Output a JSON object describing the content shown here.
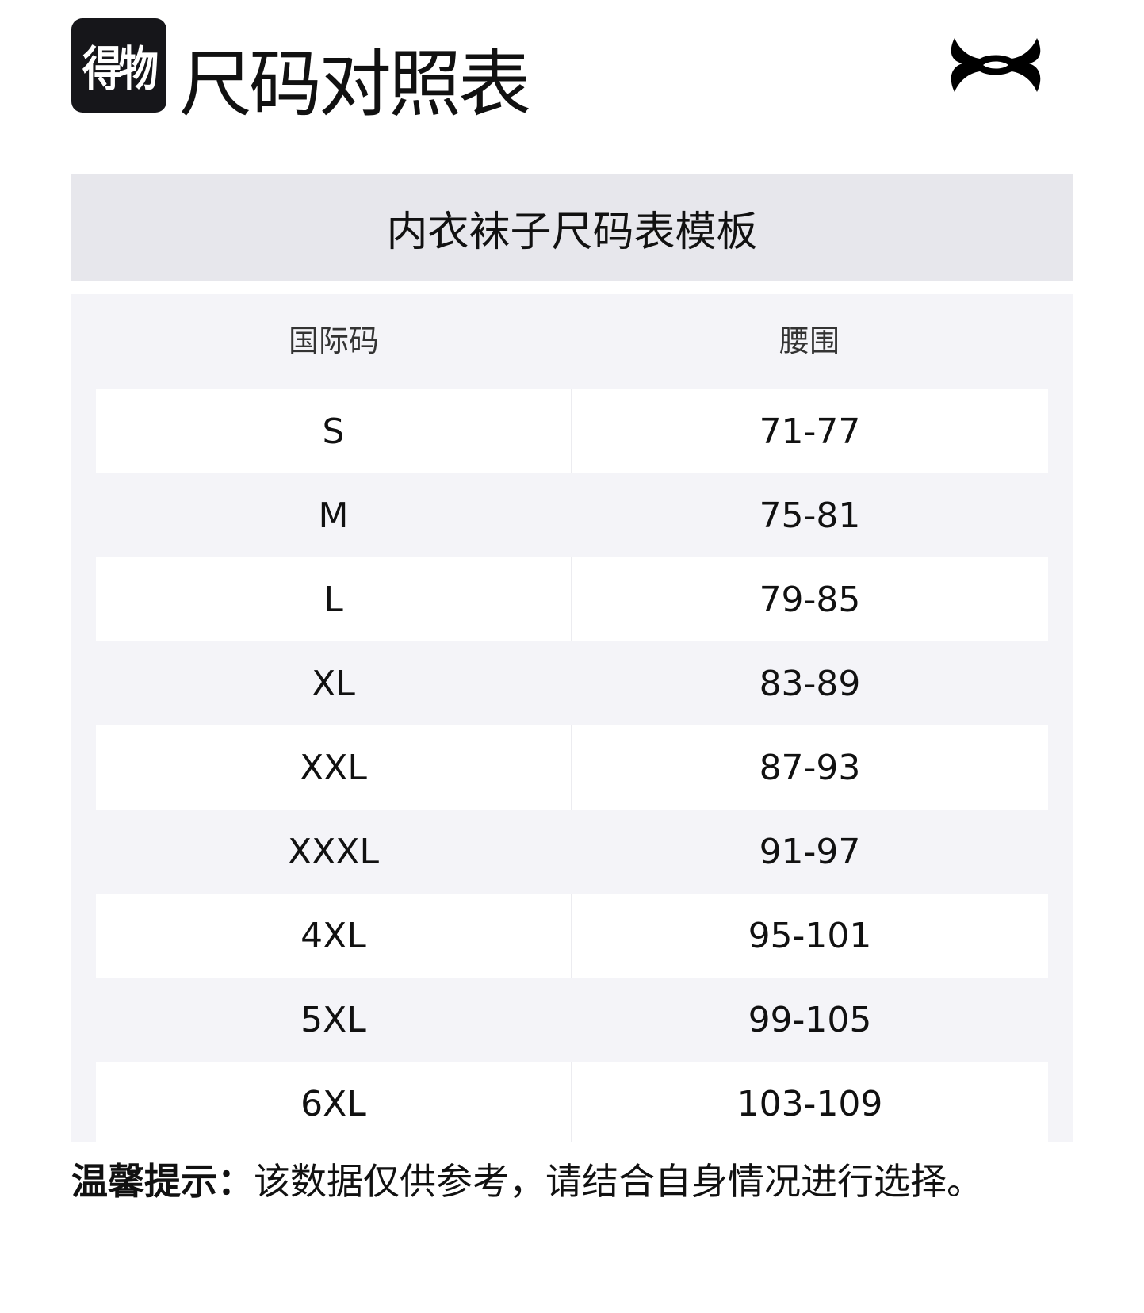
{
  "header": {
    "logo_text": "得物",
    "title": "尺码对照表",
    "brand_logo": "under-armour-logo"
  },
  "band_title": "内衣袜子尺码表模板",
  "table": {
    "columns": [
      "国际码",
      "腰围"
    ],
    "rows": [
      [
        "S",
        "71-77"
      ],
      [
        "M",
        "75-81"
      ],
      [
        "L",
        "79-85"
      ],
      [
        "XL",
        "83-89"
      ],
      [
        "XXL",
        "87-93"
      ],
      [
        "XXXL",
        "91-97"
      ],
      [
        "4XL",
        "95-101"
      ],
      [
        "5XL",
        "99-105"
      ],
      [
        "6XL",
        "103-109"
      ]
    ]
  },
  "footer": {
    "label": "温馨提示：",
    "text": "该数据仅供参考，请结合自身情况进行选择。"
  },
  "colors": {
    "band_bg": "#e7e7ec",
    "table_bg": "#f4f4f8",
    "logo_bg": "#16161a"
  }
}
